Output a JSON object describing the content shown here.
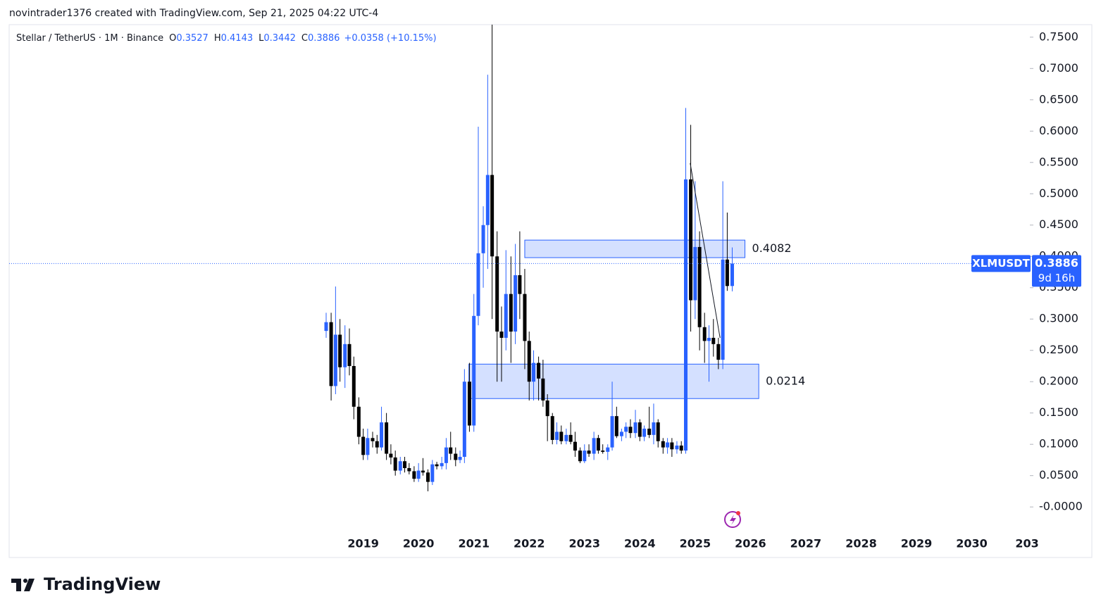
{
  "chart_data": {
    "type": "candlestick",
    "attribution": "novintrader1376 created with TradingView.com, Sep 21, 2025 04:22 UTC-4",
    "title": "Stellar / TetherUS · 1M · Binance",
    "ohlc_letters": [
      "O",
      "H",
      "L",
      "C"
    ],
    "change_label": "+0.0358 (+10.15%)",
    "symbol": "XLMUSDT",
    "countdown": "9d 16h",
    "brand": "TradingView",
    "up_color": "#2962ff",
    "down_color": "#000000",
    "x": [
      2018.33,
      2018.42,
      2018.5,
      2018.58,
      2018.67,
      2018.75,
      2018.83,
      2018.92,
      2019,
      2019.08,
      2019.17,
      2019.25,
      2019.33,
      2019.42,
      2019.5,
      2019.58,
      2019.67,
      2019.75,
      2019.83,
      2019.92,
      2020,
      2020.08,
      2020.17,
      2020.25,
      2020.33,
      2020.42,
      2020.5,
      2020.58,
      2020.67,
      2020.75,
      2020.83,
      2020.92,
      2021,
      2021.08,
      2021.17,
      2021.25,
      2021.33,
      2021.42,
      2021.5,
      2021.58,
      2021.67,
      2021.75,
      2021.83,
      2021.92,
      2022,
      2022.08,
      2022.17,
      2022.25,
      2022.33,
      2022.42,
      2022.5,
      2022.58,
      2022.67,
      2022.75,
      2022.83,
      2022.92,
      2023,
      2023.08,
      2023.17,
      2023.25,
      2023.33,
      2023.42,
      2023.5,
      2023.58,
      2023.67,
      2023.75,
      2023.83,
      2023.92,
      2024,
      2024.08,
      2024.17,
      2024.25,
      2024.33,
      2024.42,
      2024.5,
      2024.58,
      2024.67,
      2024.75,
      2024.83,
      2024.92,
      2025,
      2025.08,
      2025.17,
      2025.25,
      2025.33,
      2025.42,
      2025.5,
      2025.58,
      2025.67
    ],
    "open": [
      0.281,
      0.295,
      0.193,
      0.275,
      0.223,
      0.26,
      0.225,
      0.16,
      0.112,
      0.083,
      0.11,
      0.105,
      0.095,
      0.135,
      0.085,
      0.079,
      0.058,
      0.073,
      0.062,
      0.057,
      0.045,
      0.058,
      0.055,
      0.04,
      0.068,
      0.065,
      0.07,
      0.095,
      0.085,
      0.075,
      0.08,
      0.2,
      0.13,
      0.305,
      0.405,
      0.45,
      0.53,
      0.4,
      0.28,
      0.27,
      0.34,
      0.28,
      0.37,
      0.34,
      0.265,
      0.2,
      0.23,
      0.205,
      0.17,
      0.145,
      0.107,
      0.12,
      0.105,
      0.115,
      0.104,
      0.09,
      0.073,
      0.09,
      0.085,
      0.11,
      0.09,
      0.088,
      0.095,
      0.145,
      0.113,
      0.12,
      0.128,
      0.118,
      0.135,
      0.112,
      0.125,
      0.115,
      0.135,
      0.105,
      0.095,
      0.103,
      0.092,
      0.098,
      0.09,
      0.523,
      0.33,
      0.415,
      0.287,
      0.265,
      0.27,
      0.26,
      0.235,
      0.395,
      0.3527
    ],
    "high": [
      0.31,
      0.31,
      0.352,
      0.3,
      0.29,
      0.285,
      0.24,
      0.175,
      0.125,
      0.125,
      0.12,
      0.115,
      0.16,
      0.15,
      0.1,
      0.09,
      0.08,
      0.08,
      0.07,
      0.065,
      0.07,
      0.078,
      0.06,
      0.075,
      0.072,
      0.08,
      0.11,
      0.12,
      0.095,
      0.09,
      0.22,
      0.23,
      0.34,
      0.607,
      0.48,
      0.69,
      0.77,
      0.44,
      0.32,
      0.41,
      0.4,
      0.42,
      0.44,
      0.38,
      0.28,
      0.25,
      0.24,
      0.235,
      0.18,
      0.15,
      0.135,
      0.13,
      0.125,
      0.135,
      0.12,
      0.095,
      0.1,
      0.1,
      0.12,
      0.115,
      0.1,
      0.1,
      0.2,
      0.16,
      0.125,
      0.135,
      0.14,
      0.155,
      0.14,
      0.13,
      0.16,
      0.165,
      0.14,
      0.11,
      0.11,
      0.11,
      0.105,
      0.105,
      0.637,
      0.61,
      0.52,
      0.44,
      0.31,
      0.29,
      0.3,
      0.27,
      0.52,
      0.47,
      0.4143
    ],
    "low": [
      0.27,
      0.17,
      0.18,
      0.2,
      0.19,
      0.21,
      0.14,
      0.1,
      0.075,
      0.075,
      0.095,
      0.085,
      0.09,
      0.075,
      0.068,
      0.05,
      0.052,
      0.055,
      0.052,
      0.04,
      0.04,
      0.05,
      0.025,
      0.035,
      0.06,
      0.06,
      0.06,
      0.075,
      0.065,
      0.07,
      0.07,
      0.12,
      0.12,
      0.29,
      0.35,
      0.38,
      0.3,
      0.2,
      0.2,
      0.25,
      0.23,
      0.26,
      0.3,
      0.22,
      0.17,
      0.17,
      0.17,
      0.16,
      0.105,
      0.1,
      0.1,
      0.1,
      0.1,
      0.1,
      0.08,
      0.07,
      0.07,
      0.08,
      0.075,
      0.085,
      0.085,
      0.075,
      0.09,
      0.11,
      0.105,
      0.11,
      0.11,
      0.11,
      0.105,
      0.105,
      0.11,
      0.1,
      0.095,
      0.085,
      0.085,
      0.08,
      0.085,
      0.085,
      0.085,
      0.28,
      0.3,
      0.25,
      0.23,
      0.2,
      0.24,
      0.22,
      0.22,
      0.345,
      0.3442
    ],
    "close": [
      0.295,
      0.193,
      0.275,
      0.223,
      0.26,
      0.225,
      0.16,
      0.112,
      0.083,
      0.11,
      0.105,
      0.095,
      0.135,
      0.085,
      0.079,
      0.058,
      0.073,
      0.062,
      0.057,
      0.045,
      0.058,
      0.055,
      0.04,
      0.068,
      0.065,
      0.07,
      0.095,
      0.085,
      0.075,
      0.08,
      0.2,
      0.13,
      0.305,
      0.405,
      0.45,
      0.53,
      0.4,
      0.28,
      0.27,
      0.34,
      0.28,
      0.37,
      0.34,
      0.265,
      0.2,
      0.23,
      0.205,
      0.17,
      0.145,
      0.107,
      0.12,
      0.105,
      0.115,
      0.104,
      0.09,
      0.073,
      0.09,
      0.085,
      0.11,
      0.09,
      0.088,
      0.095,
      0.145,
      0.113,
      0.12,
      0.128,
      0.118,
      0.135,
      0.112,
      0.125,
      0.115,
      0.135,
      0.105,
      0.095,
      0.103,
      0.092,
      0.098,
      0.09,
      0.523,
      0.33,
      0.415,
      0.287,
      0.265,
      0.27,
      0.26,
      0.235,
      0.395,
      0.3527,
      0.3886
    ],
    "zones": [
      {
        "label": "0.4082",
        "x": [
          2021.92,
          2025.9
        ],
        "y": [
          0.398,
          0.426
        ]
      },
      {
        "label": "0.0214",
        "x": [
          2020.91,
          2026.15
        ],
        "y": [
          0.173,
          0.228
        ]
      }
    ],
    "lines": [
      {
        "x": [
          2024.91,
          2025.45
        ],
        "y": [
          0.549,
          0.27
        ]
      }
    ],
    "xlim": [
      2012.6,
      2031.05
    ],
    "xticks": [
      2019,
      2020,
      2021,
      2022,
      2023,
      2024,
      2025,
      2026,
      2027,
      2028,
      2029,
      2030,
      {
        "value": 2031,
        "label": "203"
      }
    ],
    "ylim": [
      -0.047,
      0.77
    ],
    "yticks": [
      {
        "value": 0,
        "label": "-0.0000"
      },
      {
        "value": 0.05,
        "label": "0.0500"
      },
      {
        "value": 0.1,
        "label": "0.1000"
      },
      {
        "value": 0.15,
        "label": "0.1500"
      },
      {
        "value": 0.2,
        "label": "0.2000"
      },
      {
        "value": 0.25,
        "label": "0.2500"
      },
      {
        "value": 0.3,
        "label": "0.3000"
      },
      {
        "value": 0.35,
        "label": "0.3500"
      },
      {
        "value": 0.4,
        "label": "0.4000"
      },
      {
        "value": 0.45,
        "label": "0.4500"
      },
      {
        "value": 0.5,
        "label": "0.5000"
      },
      {
        "value": 0.55,
        "label": "0.5500"
      },
      {
        "value": 0.6,
        "label": "0.6000"
      },
      {
        "value": 0.65,
        "label": "0.6500"
      },
      {
        "value": 0.7,
        "label": "0.7000"
      },
      {
        "value": 0.75,
        "label": "0.7500"
      }
    ]
  }
}
